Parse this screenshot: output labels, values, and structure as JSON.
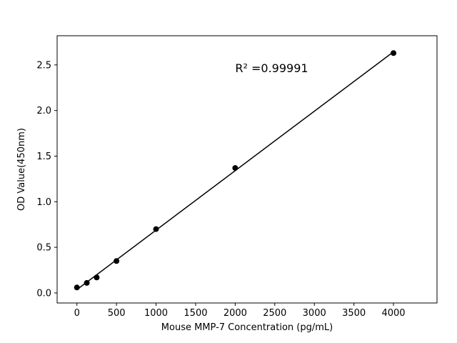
{
  "chart_data": {
    "type": "scatter",
    "x": [
      0,
      125,
      250,
      500,
      1000,
      2000,
      4000
    ],
    "y": [
      0.06,
      0.11,
      0.17,
      0.35,
      0.7,
      1.37,
      2.63
    ],
    "title": "",
    "xlabel": "Mouse MMP-7 Concentration (pg/mL)",
    "ylabel": "OD Value(450nm)",
    "xlim": [
      -250,
      4550
    ],
    "ylim": [
      -0.11,
      2.82
    ],
    "xticks": [
      0,
      500,
      1000,
      1500,
      2000,
      2500,
      3000,
      3500,
      4000
    ],
    "yticks": [
      0.0,
      0.5,
      1.0,
      1.5,
      2.0,
      2.5
    ],
    "grid": false,
    "legend_position": "none",
    "fit_line": true,
    "line_color": "#000000",
    "marker_color": "#000000",
    "background_color": "#ffffff",
    "annotation": {
      "text": "R² =0.99991",
      "x": 2000,
      "y": 2.42
    }
  }
}
